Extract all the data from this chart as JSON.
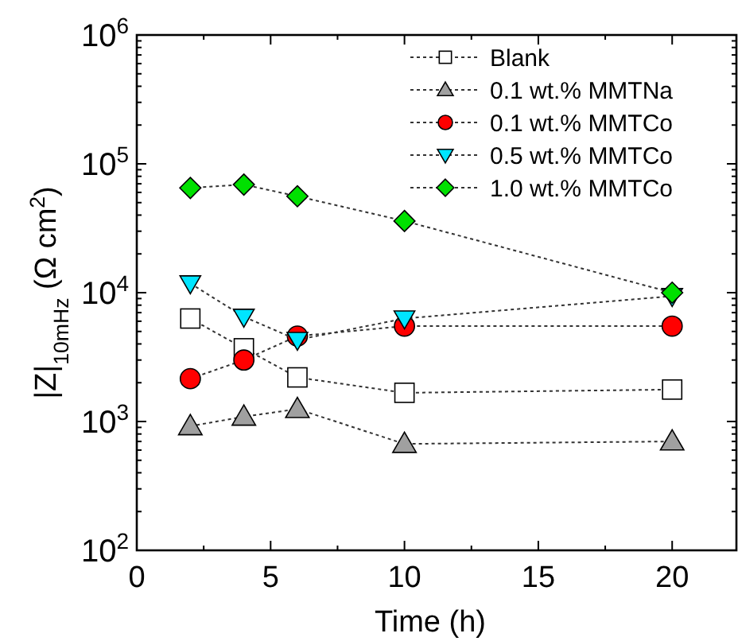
{
  "chart_data": {
    "type": "line",
    "xlabel": "Time (h)",
    "ylabel": "|Z|$_{10mHz}$ (Ω cm$^{2}$)",
    "log": "y",
    "xlim": [
      0,
      22.4
    ],
    "xticks": [
      0,
      5,
      10,
      15,
      20
    ],
    "ylim": [
      100,
      1000000
    ],
    "yticks": [
      {
        "value": 100,
        "label": "10$^{2}$"
      },
      {
        "value": 1000,
        "label": "10$^{3}$"
      },
      {
        "value": 10000,
        "label": "10$^{4}$"
      },
      {
        "value": 100000,
        "label": "10$^{5}$"
      },
      {
        "value": 1000000,
        "label": "10$^{6}$"
      }
    ],
    "grid": false,
    "legend": "top right",
    "line_style": "dotted",
    "x": [
      2,
      4,
      6,
      10,
      20
    ],
    "series": [
      {
        "name": "Blank",
        "color": "#ffffff",
        "marker": "square",
        "values": [
          6300,
          3700,
          2200,
          1670,
          1770
        ]
      },
      {
        "name": "0.1 wt.% MMTNa",
        "color": "#a0a0a0",
        "marker": "triangle",
        "values": [
          920,
          1090,
          1250,
          670,
          700
        ]
      },
      {
        "name": "0.1 wt.% MMTCo",
        "color": "#ff0000",
        "marker": "circle",
        "values": [
          2150,
          3000,
          4600,
          5500,
          5500
        ]
      },
      {
        "name": "0.5 wt.% MMTCo",
        "color": "#00e5ff",
        "marker": "triangle-down",
        "values": [
          11800,
          6500,
          4300,
          6300,
          9400
        ]
      },
      {
        "name": "1.0 wt.% MMTCo",
        "color": "#00e000",
        "marker": "diamond",
        "values": [
          65000,
          69000,
          56000,
          36000,
          10000
        ]
      }
    ]
  }
}
